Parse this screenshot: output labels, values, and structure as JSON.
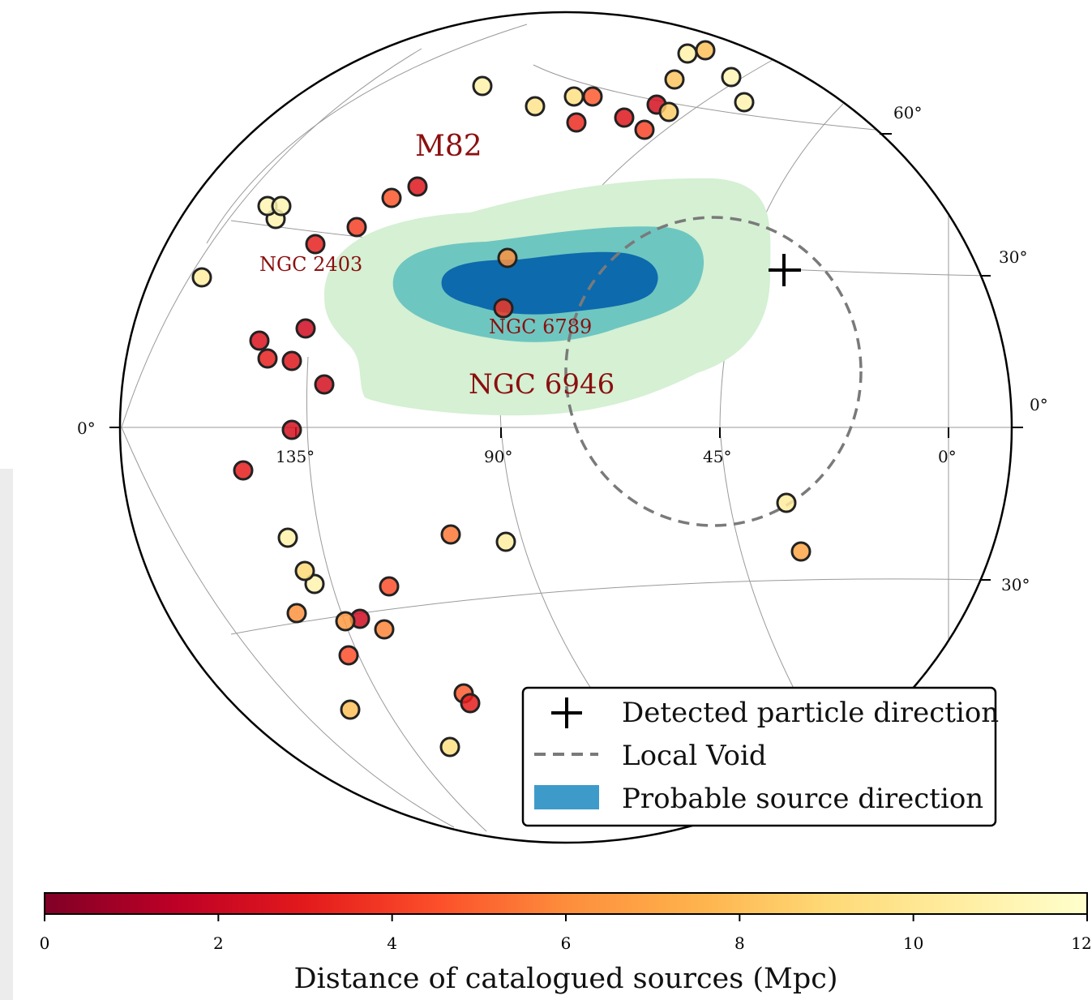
{
  "chart_data": {
    "type": "scatter",
    "projection": "aitoff",
    "lon_ticks": [
      "135°",
      "90°",
      "45°",
      "0°"
    ],
    "lat_ticks_right": [
      "60°",
      "30°",
      "0°",
      "30°"
    ],
    "lat_tick_left": "0°",
    "grid": true,
    "annotations": [
      {
        "text": "M82",
        "size": "large"
      },
      {
        "text": "NGC 2403",
        "size": "small"
      },
      {
        "text": "NGC 6789",
        "size": "small"
      },
      {
        "text": "NGC 6946",
        "size": "large"
      }
    ],
    "legend": {
      "placement": "bottom-right",
      "entries": [
        {
          "symbol": "plus",
          "label": "Detected particle direction"
        },
        {
          "symbol": "dashed-line",
          "label": "Local Void"
        },
        {
          "symbol": "filled-patch",
          "label": "Probable source direction"
        }
      ]
    },
    "colorbar": {
      "label": "Distance of catalogued sources (Mpc)",
      "range": [
        0,
        12
      ],
      "ticks": [
        "0",
        "2",
        "4",
        "6",
        "8",
        "10",
        "12"
      ],
      "colormap": "YlOrRd_r"
    },
    "detected_particle": {
      "lon": 37,
      "lat": 30
    },
    "local_void": {
      "center_lon": 45,
      "center_lat": 10,
      "radius_deg": 30
    },
    "probable_source_contours": [
      {
        "level": "outer",
        "color": "#d5f0d3"
      },
      {
        "level": "middle",
        "color": "#6ec6c0"
      },
      {
        "level": "inner",
        "color": "#0d6aad"
      }
    ],
    "points": [
      [
        124,
        2.8
      ],
      [
        178,
        10.5
      ],
      [
        128,
        3.2
      ],
      [
        130,
        11
      ],
      [
        126,
        2.6
      ],
      [
        142,
        3.2
      ],
      [
        144,
        2.8
      ],
      [
        114,
        2.2
      ],
      [
        98,
        4.1
      ],
      [
        90,
        4.7
      ],
      [
        58,
        11.1
      ],
      [
        50,
        11.1
      ],
      [
        48,
        10.8
      ],
      [
        46,
        9.8
      ],
      [
        146,
        10.8
      ],
      [
        132,
        2.4
      ],
      [
        138,
        3.1
      ],
      [
        134,
        2.4
      ],
      [
        88,
        5.5
      ],
      [
        82,
        4.5
      ],
      [
        80,
        6.2
      ],
      [
        72,
        2.2
      ],
      [
        86,
        6.5
      ],
      [
        88,
        5.8
      ],
      [
        64,
        4.5
      ],
      [
        76,
        4.8
      ],
      [
        68,
        3.1
      ],
      [
        64,
        8
      ],
      [
        70,
        9.5
      ],
      [
        78,
        10.5
      ],
      [
        90,
        11
      ],
      [
        96,
        9
      ],
      [
        102,
        9.5
      ],
      [
        104,
        4.8
      ],
      [
        108,
        3.5
      ],
      [
        110,
        2.8
      ],
      [
        106,
        4.2
      ],
      [
        112,
        2.4
      ],
      [
        150,
        8.5
      ],
      [
        146,
        11
      ],
      [
        92,
        10.8
      ],
      [
        90,
        8
      ],
      [
        40,
        11.2
      ],
      [
        90,
        8.2
      ],
      [
        38,
        10.4
      ],
      [
        96,
        7
      ],
      [
        96,
        6.2
      ],
      [
        126,
        3.8
      ]
    ]
  },
  "colors": {
    "void": "#7a7a7a",
    "annotation": "#8b0f0f",
    "grid": "#9a9a9a"
  }
}
